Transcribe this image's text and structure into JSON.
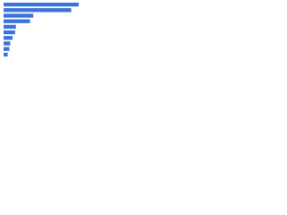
{
  "chart_data": {
    "type": "bar",
    "orientation": "horizontal",
    "categories": [
      null,
      null,
      null,
      null,
      null,
      null,
      null,
      null,
      null,
      null
    ],
    "values": [
      91,
      82,
      36,
      32,
      15,
      14,
      11,
      8,
      7,
      5
    ],
    "color": "#3b73d9",
    "xlim": [
      0,
      100
    ]
  }
}
